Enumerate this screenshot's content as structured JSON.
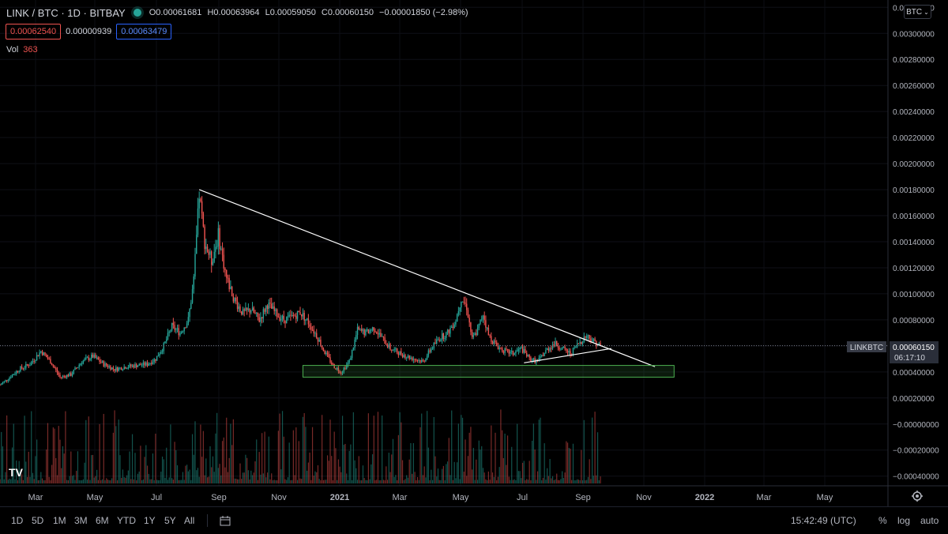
{
  "header": {
    "symbol_title": "LINK / BTC · 1D · BITBAY",
    "ohlc": {
      "open": "O0.00061681",
      "high": "H0.00063964",
      "low": "L0.00059050",
      "close": "C0.00060150",
      "change": "−0.00001850 (−2.98%)"
    },
    "sell_price": "0.00062540",
    "spread": "0.00000939",
    "buy_price": "0.00063479",
    "vol_label": "Vol",
    "vol_value": "363"
  },
  "currency_selector": "BTC",
  "symbol_tag": "LINKBTC",
  "last_price_label": "0.00060150",
  "countdown": "06:17:10",
  "colors": {
    "up": "#26a69a",
    "down": "#ef5350",
    "line": "#ffffff",
    "zone_stroke": "#4caf50",
    "background": "#000000"
  },
  "toolbar": {
    "timeframes": [
      "1D",
      "5D",
      "1M",
      "3M",
      "6M",
      "YTD",
      "1Y",
      "5Y",
      "All"
    ],
    "time": "15:42:49 (UTC)",
    "percent": "%",
    "log": "log",
    "auto": "auto"
  },
  "chart_data": {
    "type": "candlestick",
    "title": "LINK / BTC · 1D · BITBAY",
    "x_labels": [
      "Mar",
      "May",
      "Jul",
      "Sep",
      "Nov",
      "2021",
      "Mar",
      "May",
      "Jul",
      "Sep",
      "Nov",
      "2022",
      "Mar",
      "May"
    ],
    "y_ticks": [
      "0.00320000",
      "0.00300000",
      "0.00280000",
      "0.00260000",
      "0.00240000",
      "0.00220000",
      "0.00200000",
      "0.00180000",
      "0.00160000",
      "0.00140000",
      "0.00120000",
      "0.00100000",
      "0.00080000",
      "0.00060000",
      "0.00040000",
      "0.00020000",
      "−0.00000000",
      "−0.00020000",
      "−0.00040000"
    ],
    "ylim": [
      -0.00042,
      0.00322
    ],
    "last_close": 0.0006015,
    "price_path": [
      {
        "t": 0,
        "p": 0.0003
      },
      {
        "t": 6,
        "p": 0.00035
      },
      {
        "t": 14,
        "p": 0.00042
      },
      {
        "t": 22,
        "p": 0.00046
      },
      {
        "t": 30,
        "p": 0.00056
      },
      {
        "t": 37,
        "p": 0.00048
      },
      {
        "t": 44,
        "p": 0.00036
      },
      {
        "t": 52,
        "p": 0.00038
      },
      {
        "t": 60,
        "p": 0.00048
      },
      {
        "t": 68,
        "p": 0.00052
      },
      {
        "t": 76,
        "p": 0.00046
      },
      {
        "t": 84,
        "p": 0.00042
      },
      {
        "t": 92,
        "p": 0.00044
      },
      {
        "t": 100,
        "p": 0.00045
      },
      {
        "t": 108,
        "p": 0.00046
      },
      {
        "t": 114,
        "p": 0.0005
      },
      {
        "t": 120,
        "p": 0.0006
      },
      {
        "t": 126,
        "p": 0.00075
      },
      {
        "t": 132,
        "p": 0.0007
      },
      {
        "t": 138,
        "p": 0.0008
      },
      {
        "t": 142,
        "p": 0.0011
      },
      {
        "t": 146,
        "p": 0.00176
      },
      {
        "t": 150,
        "p": 0.0014
      },
      {
        "t": 155,
        "p": 0.00125
      },
      {
        "t": 160,
        "p": 0.00145
      },
      {
        "t": 166,
        "p": 0.00112
      },
      {
        "t": 172,
        "p": 0.00095
      },
      {
        "t": 178,
        "p": 0.00085
      },
      {
        "t": 184,
        "p": 0.00088
      },
      {
        "t": 190,
        "p": 0.0008
      },
      {
        "t": 196,
        "p": 0.00092
      },
      {
        "t": 202,
        "p": 0.00085
      },
      {
        "t": 208,
        "p": 0.0008
      },
      {
        "t": 214,
        "p": 0.00082
      },
      {
        "t": 220,
        "p": 0.00086
      },
      {
        "t": 226,
        "p": 0.00078
      },
      {
        "t": 232,
        "p": 0.00068
      },
      {
        "t": 238,
        "p": 0.00055
      },
      {
        "t": 244,
        "p": 0.00045
      },
      {
        "t": 250,
        "p": 0.0004
      },
      {
        "t": 256,
        "p": 0.00048
      },
      {
        "t": 262,
        "p": 0.00072
      },
      {
        "t": 268,
        "p": 0.0007
      },
      {
        "t": 274,
        "p": 0.00074
      },
      {
        "t": 280,
        "p": 0.00066
      },
      {
        "t": 286,
        "p": 0.00058
      },
      {
        "t": 292,
        "p": 0.00055
      },
      {
        "t": 298,
        "p": 0.00052
      },
      {
        "t": 304,
        "p": 0.0005
      },
      {
        "t": 310,
        "p": 0.00048
      },
      {
        "t": 316,
        "p": 0.00058
      },
      {
        "t": 322,
        "p": 0.00066
      },
      {
        "t": 328,
        "p": 0.0007
      },
      {
        "t": 334,
        "p": 0.0008
      },
      {
        "t": 338,
        "p": 0.00097
      },
      {
        "t": 342,
        "p": 0.0009
      },
      {
        "t": 346,
        "p": 0.00065
      },
      {
        "t": 350,
        "p": 0.00072
      },
      {
        "t": 354,
        "p": 0.00085
      },
      {
        "t": 358,
        "p": 0.00068
      },
      {
        "t": 364,
        "p": 0.0006
      },
      {
        "t": 370,
        "p": 0.00056
      },
      {
        "t": 376,
        "p": 0.00054
      },
      {
        "t": 382,
        "p": 0.00058
      },
      {
        "t": 388,
        "p": 0.0005
      },
      {
        "t": 394,
        "p": 0.00048
      },
      {
        "t": 400,
        "p": 0.00056
      },
      {
        "t": 406,
        "p": 0.00062
      },
      {
        "t": 412,
        "p": 0.00058
      },
      {
        "t": 418,
        "p": 0.00054
      },
      {
        "t": 424,
        "p": 0.00062
      },
      {
        "t": 430,
        "p": 0.00068
      },
      {
        "t": 436,
        "p": 0.00063
      },
      {
        "t": 440,
        "p": 0.0006
      }
    ],
    "volume_scale": [
      0,
      0.0002
    ],
    "drawings": {
      "trendline_top": [
        {
          "t": 146,
          "p": 0.0018
        },
        {
          "t": 480,
          "p": 0.00044
        }
      ],
      "trendline_bottom": [
        {
          "t": 384,
          "p": 0.00047
        },
        {
          "t": 448,
          "p": 0.00058
        }
      ],
      "support_zone": {
        "t_start": 222,
        "t_end": 494,
        "p_low": 0.00036,
        "p_high": 0.00045
      }
    }
  }
}
